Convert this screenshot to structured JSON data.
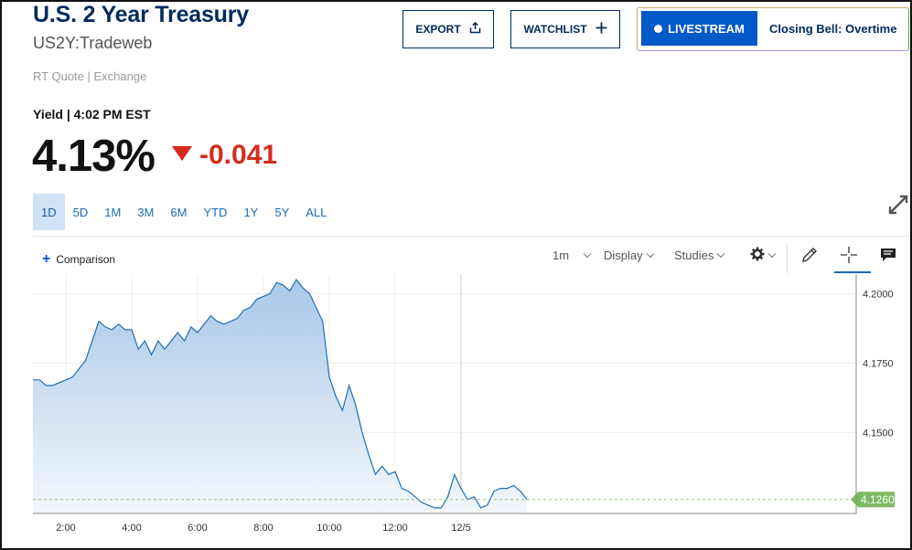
{
  "header": {
    "title": "U.S. 2 Year Treasury",
    "symbol": "US2Y:Tradeweb",
    "quote_source": "RT Quote | Exchange",
    "yield_label": "Yield | 4:02 PM EST",
    "price": "4.13%",
    "change": "-0.041",
    "change_color": "#d52b1e"
  },
  "actions": {
    "export_label": "EXPORT",
    "watchlist_label": "WATCHLIST",
    "livestream_label": "LIVESTREAM",
    "closing_bell": "Closing Bell: Overtime",
    "livestream_color": "#0059c9"
  },
  "ranges": [
    "1D",
    "5D",
    "1M",
    "3M",
    "6M",
    "YTD",
    "1Y",
    "5Y",
    "ALL"
  ],
  "active_range": "1D",
  "toolbar": {
    "comparison": "Comparison",
    "interval": "1m",
    "display": "Display",
    "studies": "Studies",
    "icons": [
      "gear-icon",
      "pencil-icon",
      "crosshair-icon",
      "comment-icon"
    ]
  },
  "chart_data": {
    "type": "area",
    "x_ticks": [
      "2:00",
      "4:00",
      "6:00",
      "8:00",
      "10:00",
      "12:00",
      "12/5"
    ],
    "y_ticks": [
      "4.2000",
      "4.1750",
      "4.1500"
    ],
    "ylim": [
      4.121,
      4.207
    ],
    "last_value": "4.1260",
    "series": [
      {
        "x": [
          1.0,
          1.2,
          1.4,
          1.6,
          1.8,
          2.0,
          2.2,
          2.4,
          2.6,
          2.8,
          3.0,
          3.2,
          3.4,
          3.6,
          3.8,
          4.0,
          4.2,
          4.4,
          4.6,
          4.8,
          5.0,
          5.2,
          5.4,
          5.6,
          5.8,
          6.0,
          6.2,
          6.4,
          6.6,
          6.8,
          7.0,
          7.2,
          7.4,
          7.6,
          7.8,
          8.0,
          8.2,
          8.4,
          8.6,
          8.8,
          9.0,
          9.2,
          9.4,
          9.6,
          9.8,
          10.0,
          10.2,
          10.4,
          10.6,
          10.8,
          11.0,
          11.2,
          11.4,
          11.6,
          11.8,
          12.0,
          12.2,
          12.4,
          12.6,
          12.8,
          13.0,
          13.2,
          13.4,
          13.6,
          13.8,
          14.0,
          14.2,
          14.4,
          14.6,
          14.8,
          15.0,
          15.2,
          15.4,
          15.6,
          15.8,
          16.0
        ],
        "y": [
          4.169,
          4.169,
          4.167,
          4.167,
          4.168,
          4.169,
          4.17,
          4.173,
          4.176,
          4.183,
          4.19,
          4.188,
          4.187,
          4.189,
          4.187,
          4.187,
          4.18,
          4.183,
          4.178,
          4.183,
          4.18,
          4.183,
          4.186,
          4.183,
          4.188,
          4.186,
          4.189,
          4.192,
          4.19,
          4.189,
          4.19,
          4.191,
          4.194,
          4.195,
          4.198,
          4.199,
          4.2,
          4.204,
          4.203,
          4.201,
          4.205,
          4.202,
          4.2,
          4.195,
          4.19,
          4.17,
          4.163,
          4.158,
          4.167,
          4.16,
          4.15,
          4.142,
          4.135,
          4.138,
          4.135,
          4.136,
          4.13,
          4.129,
          4.127,
          4.125,
          4.124,
          4.123,
          4.123,
          4.127,
          4.135,
          4.13,
          4.126,
          4.127,
          4.123,
          4.124,
          4.129,
          4.13,
          4.13,
          4.131,
          4.129,
          4.126
        ]
      }
    ],
    "colors": {
      "line": "#1e6fb5",
      "last_value_badge": "#7dbb62"
    },
    "grid": true
  }
}
